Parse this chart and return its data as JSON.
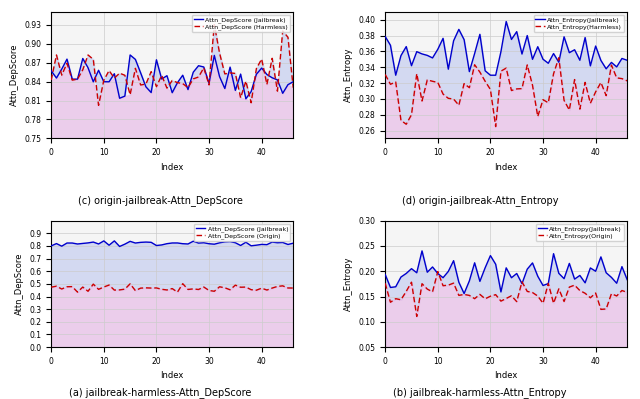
{
  "subplots": [
    {
      "label": "(a) jailbreak-harmless-Attn_DepScore",
      "ylabel": "Attn_DepScore",
      "xlabel": "Index",
      "ylim": [
        0.75,
        0.95
      ],
      "yticks": [
        0.75,
        0.78,
        0.81,
        0.84,
        0.87,
        0.9,
        0.93
      ],
      "line1_label": "Attn_DepScore (Jailbreak)",
      "line2_label": "Attn_DepScore (Harmless)",
      "line1_color": "#0000cc",
      "line2_color": "#cc0000",
      "fill_above_color": "#c8d0f0",
      "fill_below_color": "#e8c0e8"
    },
    {
      "label": "(b) jailbreak-harmless-Attn_Entropy",
      "ylabel": "Attn_Entropy",
      "xlabel": "Index",
      "ylim": [
        0.25,
        0.41
      ],
      "yticks": [
        0.26,
        0.28,
        0.3,
        0.32,
        0.34,
        0.36,
        0.38,
        0.4
      ],
      "line1_label": "Attn_Entropy(Jailbreak)",
      "line2_label": "Attn_Entropy(Harmless)",
      "line1_color": "#0000cc",
      "line2_color": "#cc0000",
      "fill_above_color": "#c8d0f0",
      "fill_below_color": "#e8c0e8"
    },
    {
      "label": "(c) origin-jailbreak-Attn_DepScore",
      "ylabel": "Attn_DepScore",
      "xlabel": "Index",
      "ylim": [
        0.0,
        1.0
      ],
      "yticks": [
        0.0,
        0.1,
        0.2,
        0.3,
        0.4,
        0.5,
        0.6,
        0.7,
        0.8,
        0.9
      ],
      "line1_label": "Attn_DepScore (Jailbreak)",
      "line2_label": "Attn_DepScore (Origin)",
      "line1_color": "#0000cc",
      "line2_color": "#cc0000",
      "fill_above_color": "#c8d0f0",
      "fill_below_color": "#e8c0e8"
    },
    {
      "label": "(d) origin-jailbreak-Attn_Entropy",
      "ylabel": "Attn_Entropy",
      "xlabel": "Index",
      "ylim": [
        0.05,
        0.3
      ],
      "yticks": [
        0.05,
        0.1,
        0.15,
        0.2,
        0.25,
        0.3
      ],
      "line1_label": "Attn_Entropy(Jailbreak)",
      "line2_label": "Attn_Entropy(Origin)",
      "line1_color": "#0000cc",
      "line2_color": "#cc0000",
      "fill_above_color": "#c8d0f0",
      "fill_below_color": "#e8c0e8"
    }
  ],
  "n_points": 47,
  "xticks": [
    0,
    10,
    20,
    30,
    40
  ],
  "xtick_labels": [
    "0",
    "10",
    "20",
    "30",
    "40"
  ],
  "bg_color": "#f5f5f5",
  "grid_color": "#cccccc"
}
